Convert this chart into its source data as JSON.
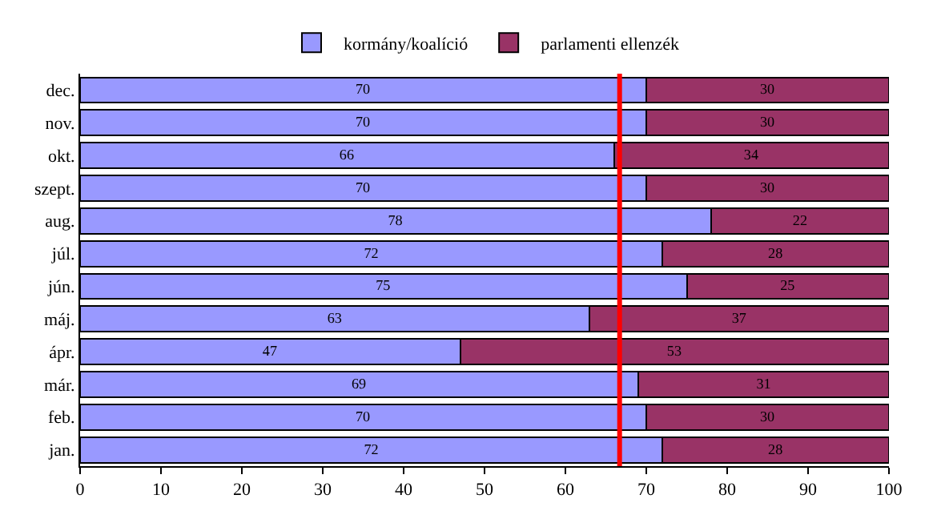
{
  "chart_data": {
    "type": "bar",
    "orientation": "horizontal",
    "stacked": true,
    "categories": [
      "dec.",
      "nov.",
      "okt.",
      "szept.",
      "aug.",
      "júl.",
      "jún.",
      "máj.",
      "ápr.",
      "már.",
      "feb.",
      "jan."
    ],
    "series": [
      {
        "name": "kormány/koalíció",
        "color": "#9999ff",
        "values": [
          70,
          70,
          66,
          70,
          78,
          72,
          75,
          63,
          47,
          69,
          70,
          72
        ]
      },
      {
        "name": "parlamenti ellenzék",
        "color": "#993366",
        "values": [
          30,
          30,
          34,
          30,
          22,
          28,
          25,
          37,
          53,
          31,
          30,
          28
        ]
      }
    ],
    "xlim": [
      0,
      100
    ],
    "xticks": [
      0,
      10,
      20,
      30,
      40,
      50,
      60,
      70,
      80,
      90,
      100
    ],
    "ref_lines": [
      {
        "axis": "x",
        "value": 66.7,
        "color": "#ff0000",
        "line_style": "solid"
      }
    ],
    "data_labels": true,
    "grid": false,
    "legend": "top"
  }
}
